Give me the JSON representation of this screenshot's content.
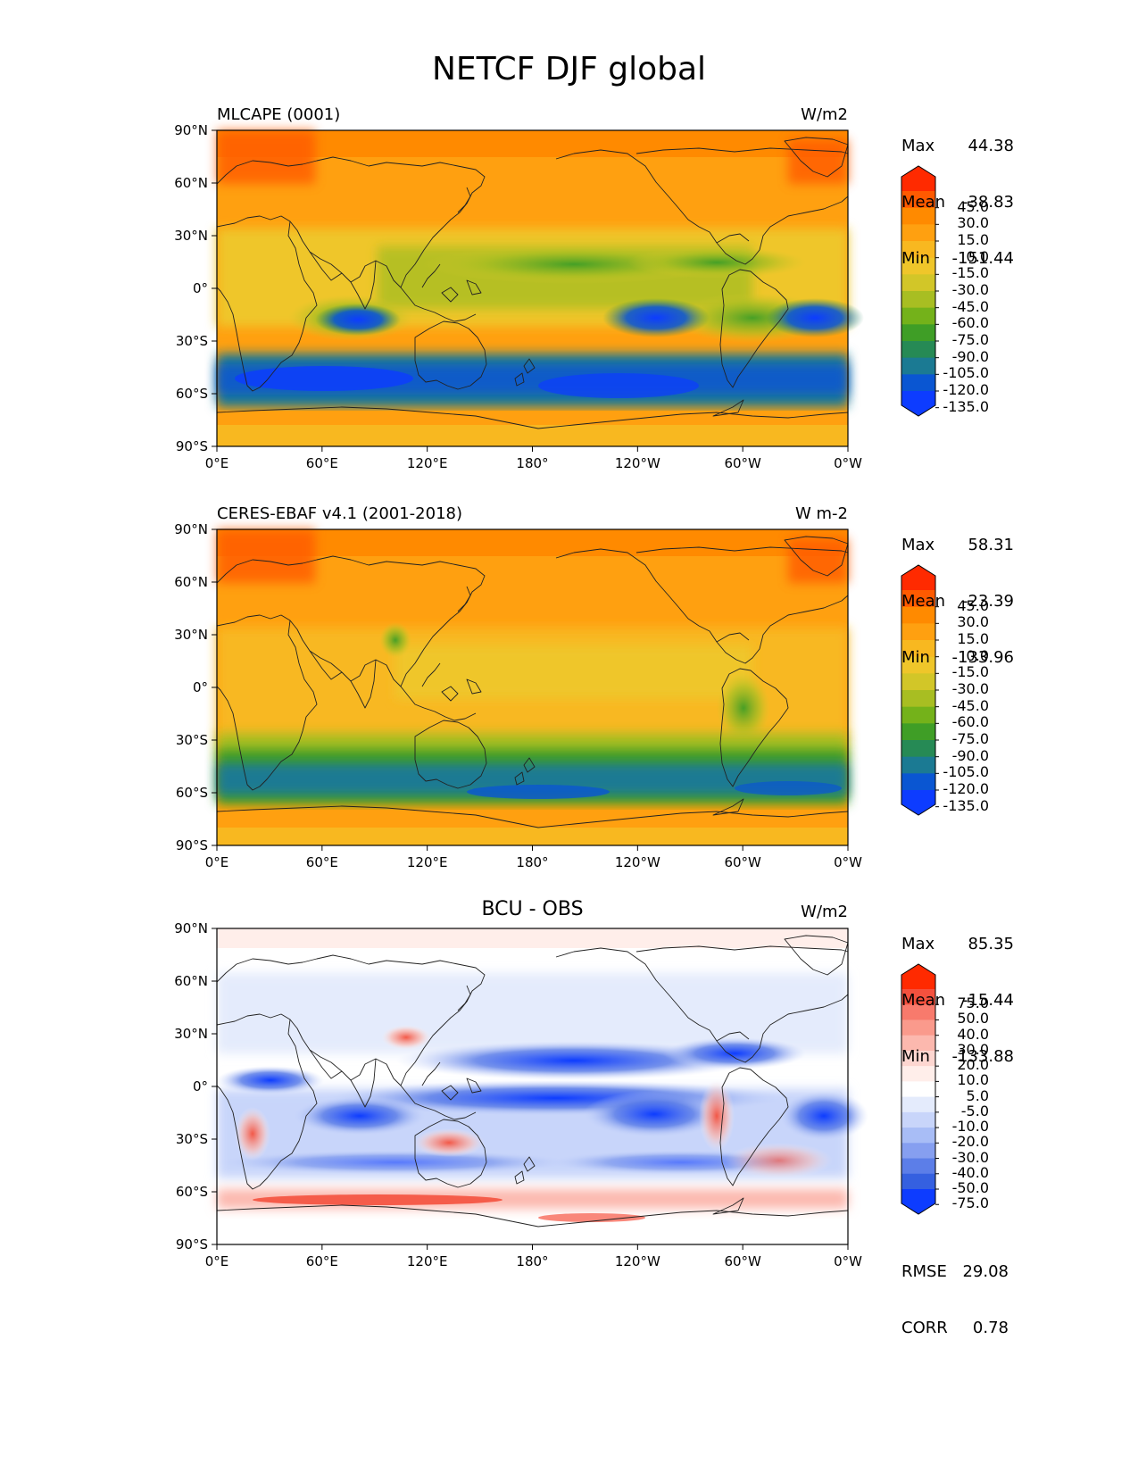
{
  "title": "NETCF DJF global",
  "x_ticks": [
    "0°E",
    "60°E",
    "120°E",
    "180°",
    "120°W",
    "60°W",
    "0°W"
  ],
  "y_ticks": [
    "90°N",
    "60°N",
    "30°N",
    "0°",
    "30°S",
    "60°S",
    "90°S"
  ],
  "panels": [
    {
      "left_title": "MLCAPE (0001)",
      "center_title": "",
      "units": "W/m2",
      "stats": {
        "max_label": "Max",
        "max": "44.38",
        "mean_label": "Mean",
        "mean": "-38.83",
        "min_label": "Min",
        "min": "-151.44"
      },
      "colorbar": {
        "labels": [
          "45.0",
          "30.0",
          "15.0",
          "0.0",
          "-15.0",
          "-30.0",
          "-45.0",
          "-60.0",
          "-75.0",
          "-90.0",
          "-105.0",
          "-120.0",
          "-135.0"
        ],
        "colors": [
          "#ff2a00",
          "#ff5a00",
          "#ff8a00",
          "#ffa010",
          "#f8b820",
          "#efc62a",
          "#d2c628",
          "#a8be22",
          "#74b21a",
          "#3f9e26",
          "#268a55",
          "#1b7a93",
          "#0a56d2",
          "#0d3cff"
        ],
        "top_arrow_color": "#ff2a00",
        "bottom_arrow_color": "#0d3cff"
      },
      "metrics": []
    },
    {
      "left_title": "CERES-EBAF v4.1 (2001-2018)",
      "center_title": "",
      "units": "W m-2",
      "stats": {
        "max_label": "Max",
        "max": "58.31",
        "mean_label": "Mean",
        "mean": "-23.39",
        "min_label": "Min",
        "min": "-133.96"
      },
      "colorbar": {
        "labels": [
          "45.0",
          "30.0",
          "15.0",
          "0.0",
          "-15.0",
          "-30.0",
          "-45.0",
          "-60.0",
          "-75.0",
          "-90.0",
          "-105.0",
          "-120.0",
          "-135.0"
        ],
        "colors": [
          "#ff2a00",
          "#ff5a00",
          "#ff8a00",
          "#ffa010",
          "#f8b820",
          "#efc62a",
          "#d2c628",
          "#a8be22",
          "#74b21a",
          "#3f9e26",
          "#268a55",
          "#1b7a93",
          "#0a56d2",
          "#0d3cff"
        ],
        "top_arrow_color": "#ff2a00",
        "bottom_arrow_color": "#0d3cff"
      },
      "metrics": []
    },
    {
      "left_title": "",
      "center_title": "BCU - OBS",
      "units": "W/m2",
      "stats": {
        "max_label": "Max",
        "max": "85.35",
        "mean_label": "Mean",
        "mean": "-15.44",
        "min_label": "Min",
        "min": "-133.88"
      },
      "colorbar": {
        "labels": [
          "75.0",
          "50.0",
          "40.0",
          "30.0",
          "20.0",
          "10.0",
          "5.0",
          "-5.0",
          "-10.0",
          "-20.0",
          "-30.0",
          "-40.0",
          "-50.0",
          "-75.0"
        ],
        "colors": [
          "#ff2a00",
          "#f4513e",
          "#f87a6c",
          "#fa9a8c",
          "#fcb8ae",
          "#fdd6d0",
          "#ffeeea",
          "#ffffff",
          "#e4ebfc",
          "#c8d5fa",
          "#a8bdf6",
          "#869ff0",
          "#5c7ee8",
          "#3560e0",
          "#0d3cff"
        ],
        "top_arrow_color": "#ff2a00",
        "bottom_arrow_color": "#0d3cff"
      },
      "metrics": [
        {
          "label": "RMSE",
          "value": "29.08"
        },
        {
          "label": "CORR",
          "value": "0.78"
        }
      ]
    }
  ]
}
